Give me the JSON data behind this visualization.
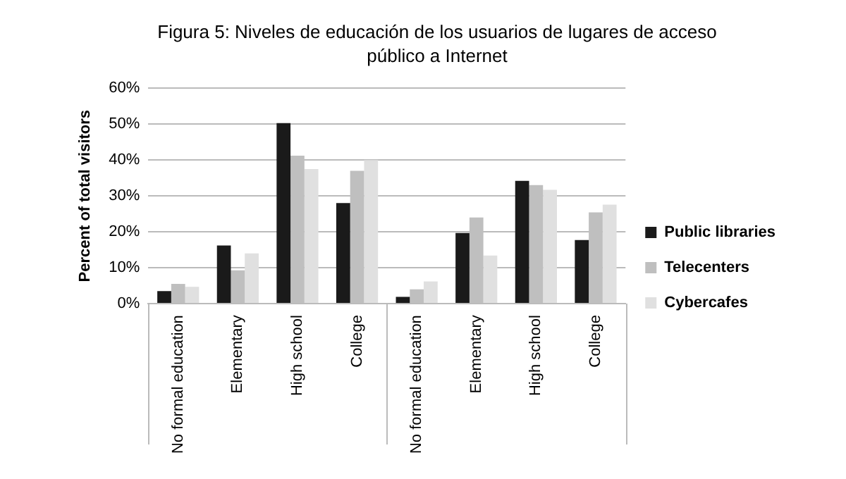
{
  "chart_data": {
    "type": "bar",
    "title": "Figura 5: Niveles de educación de los usuarios de lugares de acceso público a Internet",
    "ylabel": "Percent of total visitors",
    "categories": [
      "No formal education",
      "Elementary",
      "High school",
      "College",
      "No formal education",
      "Elementary",
      "High school",
      "College"
    ],
    "series": [
      {
        "name": "Public libraries",
        "color": "#1a1a1a",
        "values": [
          3.5,
          16.2,
          50.3,
          28,
          1.9,
          19.7,
          34.2,
          17.7
        ]
      },
      {
        "name": "Telecenters",
        "color": "#bfbfbf",
        "values": [
          5.5,
          9.3,
          41.2,
          37,
          4,
          24,
          33,
          25.4
        ]
      },
      {
        "name": "Cybercafes",
        "color": "#e0e0e0",
        "values": [
          4.7,
          14,
          37.5,
          40,
          6.2,
          13.4,
          31.7,
          27.6
        ]
      }
    ],
    "ylim": [
      0,
      60
    ],
    "yticks": [
      {
        "value": 0,
        "label": "0%"
      },
      {
        "value": 10,
        "label": "10%"
      },
      {
        "value": 20,
        "label": "20%"
      },
      {
        "value": 30,
        "label": "30%"
      },
      {
        "value": 40,
        "label": "40%"
      },
      {
        "value": 50,
        "label": "50%"
      },
      {
        "value": 60,
        "label": "60%"
      }
    ],
    "grid": "y",
    "legend": "right"
  }
}
